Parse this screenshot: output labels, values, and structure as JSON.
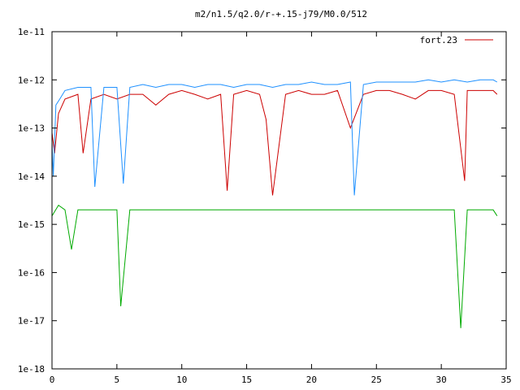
{
  "chart_data": {
    "type": "line",
    "title": "m2/n1.5/q2.0/r-+.15-j79/M0.0/512",
    "xlabel": "",
    "ylabel": "",
    "x_range": [
      0,
      35
    ],
    "y_range": [
      1e-18,
      1e-11
    ],
    "y_scale": "log",
    "grid": false,
    "legend_position": "top-right",
    "x_ticks": [
      "0",
      "5",
      "10",
      "15",
      "20",
      "25",
      "30",
      "35"
    ],
    "y_ticks": [
      "1e-18",
      "1e-17",
      "1e-16",
      "1e-15",
      "1e-14",
      "1e-13",
      "1e-12",
      "1e-11"
    ],
    "series": [
      {
        "name": "fort.23",
        "color": "#cc0000",
        "x": [
          0,
          0.2,
          0.5,
          1,
          2,
          2.4,
          3,
          4,
          5,
          6,
          7,
          8,
          9,
          10,
          11,
          12,
          13,
          13.5,
          14,
          15,
          16,
          16.5,
          17,
          18,
          19,
          20,
          21,
          22,
          23,
          24,
          25,
          26,
          27,
          28,
          29,
          30,
          31,
          31.8,
          32,
          33,
          34,
          34.3
        ],
        "y": [
          8e-14,
          3e-14,
          2e-13,
          4e-13,
          5e-13,
          3e-14,
          4e-13,
          5e-13,
          4e-13,
          5e-13,
          5e-13,
          3e-13,
          5e-13,
          6e-13,
          5e-13,
          4e-13,
          5e-13,
          5e-15,
          5e-13,
          6e-13,
          5e-13,
          1.5e-13,
          4e-15,
          5e-13,
          6e-13,
          5e-13,
          5e-13,
          6e-13,
          1e-13,
          5e-13,
          6e-13,
          6e-13,
          5e-13,
          4e-13,
          6e-13,
          6e-13,
          5e-13,
          8e-15,
          6e-13,
          6e-13,
          6e-13,
          5e-13
        ]
      },
      {
        "name": "",
        "color": "#1e90ff",
        "x": [
          0,
          0.1,
          0.3,
          0.6,
          1,
          2,
          3,
          3.3,
          4,
          5,
          5.5,
          6,
          7,
          8,
          9,
          10,
          11,
          12,
          13,
          14,
          15,
          16,
          17,
          18,
          19,
          20,
          21,
          22,
          23,
          23.3,
          24,
          25,
          26,
          27,
          28,
          29,
          30,
          31,
          32,
          33,
          34,
          34.3
        ],
        "y": [
          5e-14,
          1e-14,
          3e-13,
          4e-13,
          6e-13,
          7e-13,
          7e-13,
          6e-15,
          7e-13,
          7e-13,
          7e-15,
          7e-13,
          8e-13,
          7e-13,
          8e-13,
          8e-13,
          7e-13,
          8e-13,
          8e-13,
          7e-13,
          8e-13,
          8e-13,
          7e-13,
          8e-13,
          8e-13,
          9e-13,
          8e-13,
          8e-13,
          9e-13,
          4e-15,
          8e-13,
          9e-13,
          9e-13,
          9e-13,
          9e-13,
          1e-12,
          9e-13,
          1e-12,
          9e-13,
          1e-12,
          1e-12,
          9e-13
        ]
      },
      {
        "name": "",
        "color": "#00aa00",
        "x": [
          0,
          0.5,
          1,
          1.5,
          2,
          2.5,
          3,
          4,
          5,
          5.3,
          6,
          7,
          8,
          9,
          10,
          11,
          12,
          13,
          14,
          15,
          16,
          17,
          18,
          19,
          20,
          21,
          22,
          23,
          24,
          25,
          26,
          27,
          28,
          29,
          30,
          31,
          31.5,
          32,
          33,
          34,
          34.3
        ],
        "y": [
          1.5e-15,
          2.5e-15,
          2e-15,
          3e-16,
          2e-15,
          2e-15,
          2e-15,
          2e-15,
          2e-15,
          2e-17,
          2e-15,
          2e-15,
          2e-15,
          2e-15,
          2e-15,
          2e-15,
          2e-15,
          2e-15,
          2e-15,
          2e-15,
          2e-15,
          2e-15,
          2e-15,
          2e-15,
          2e-15,
          2e-15,
          2e-15,
          2e-15,
          2e-15,
          2e-15,
          2e-15,
          2e-15,
          2e-15,
          2e-15,
          2e-15,
          2e-15,
          7e-18,
          2e-15,
          2e-15,
          2e-15,
          1.5e-15
        ]
      }
    ]
  }
}
